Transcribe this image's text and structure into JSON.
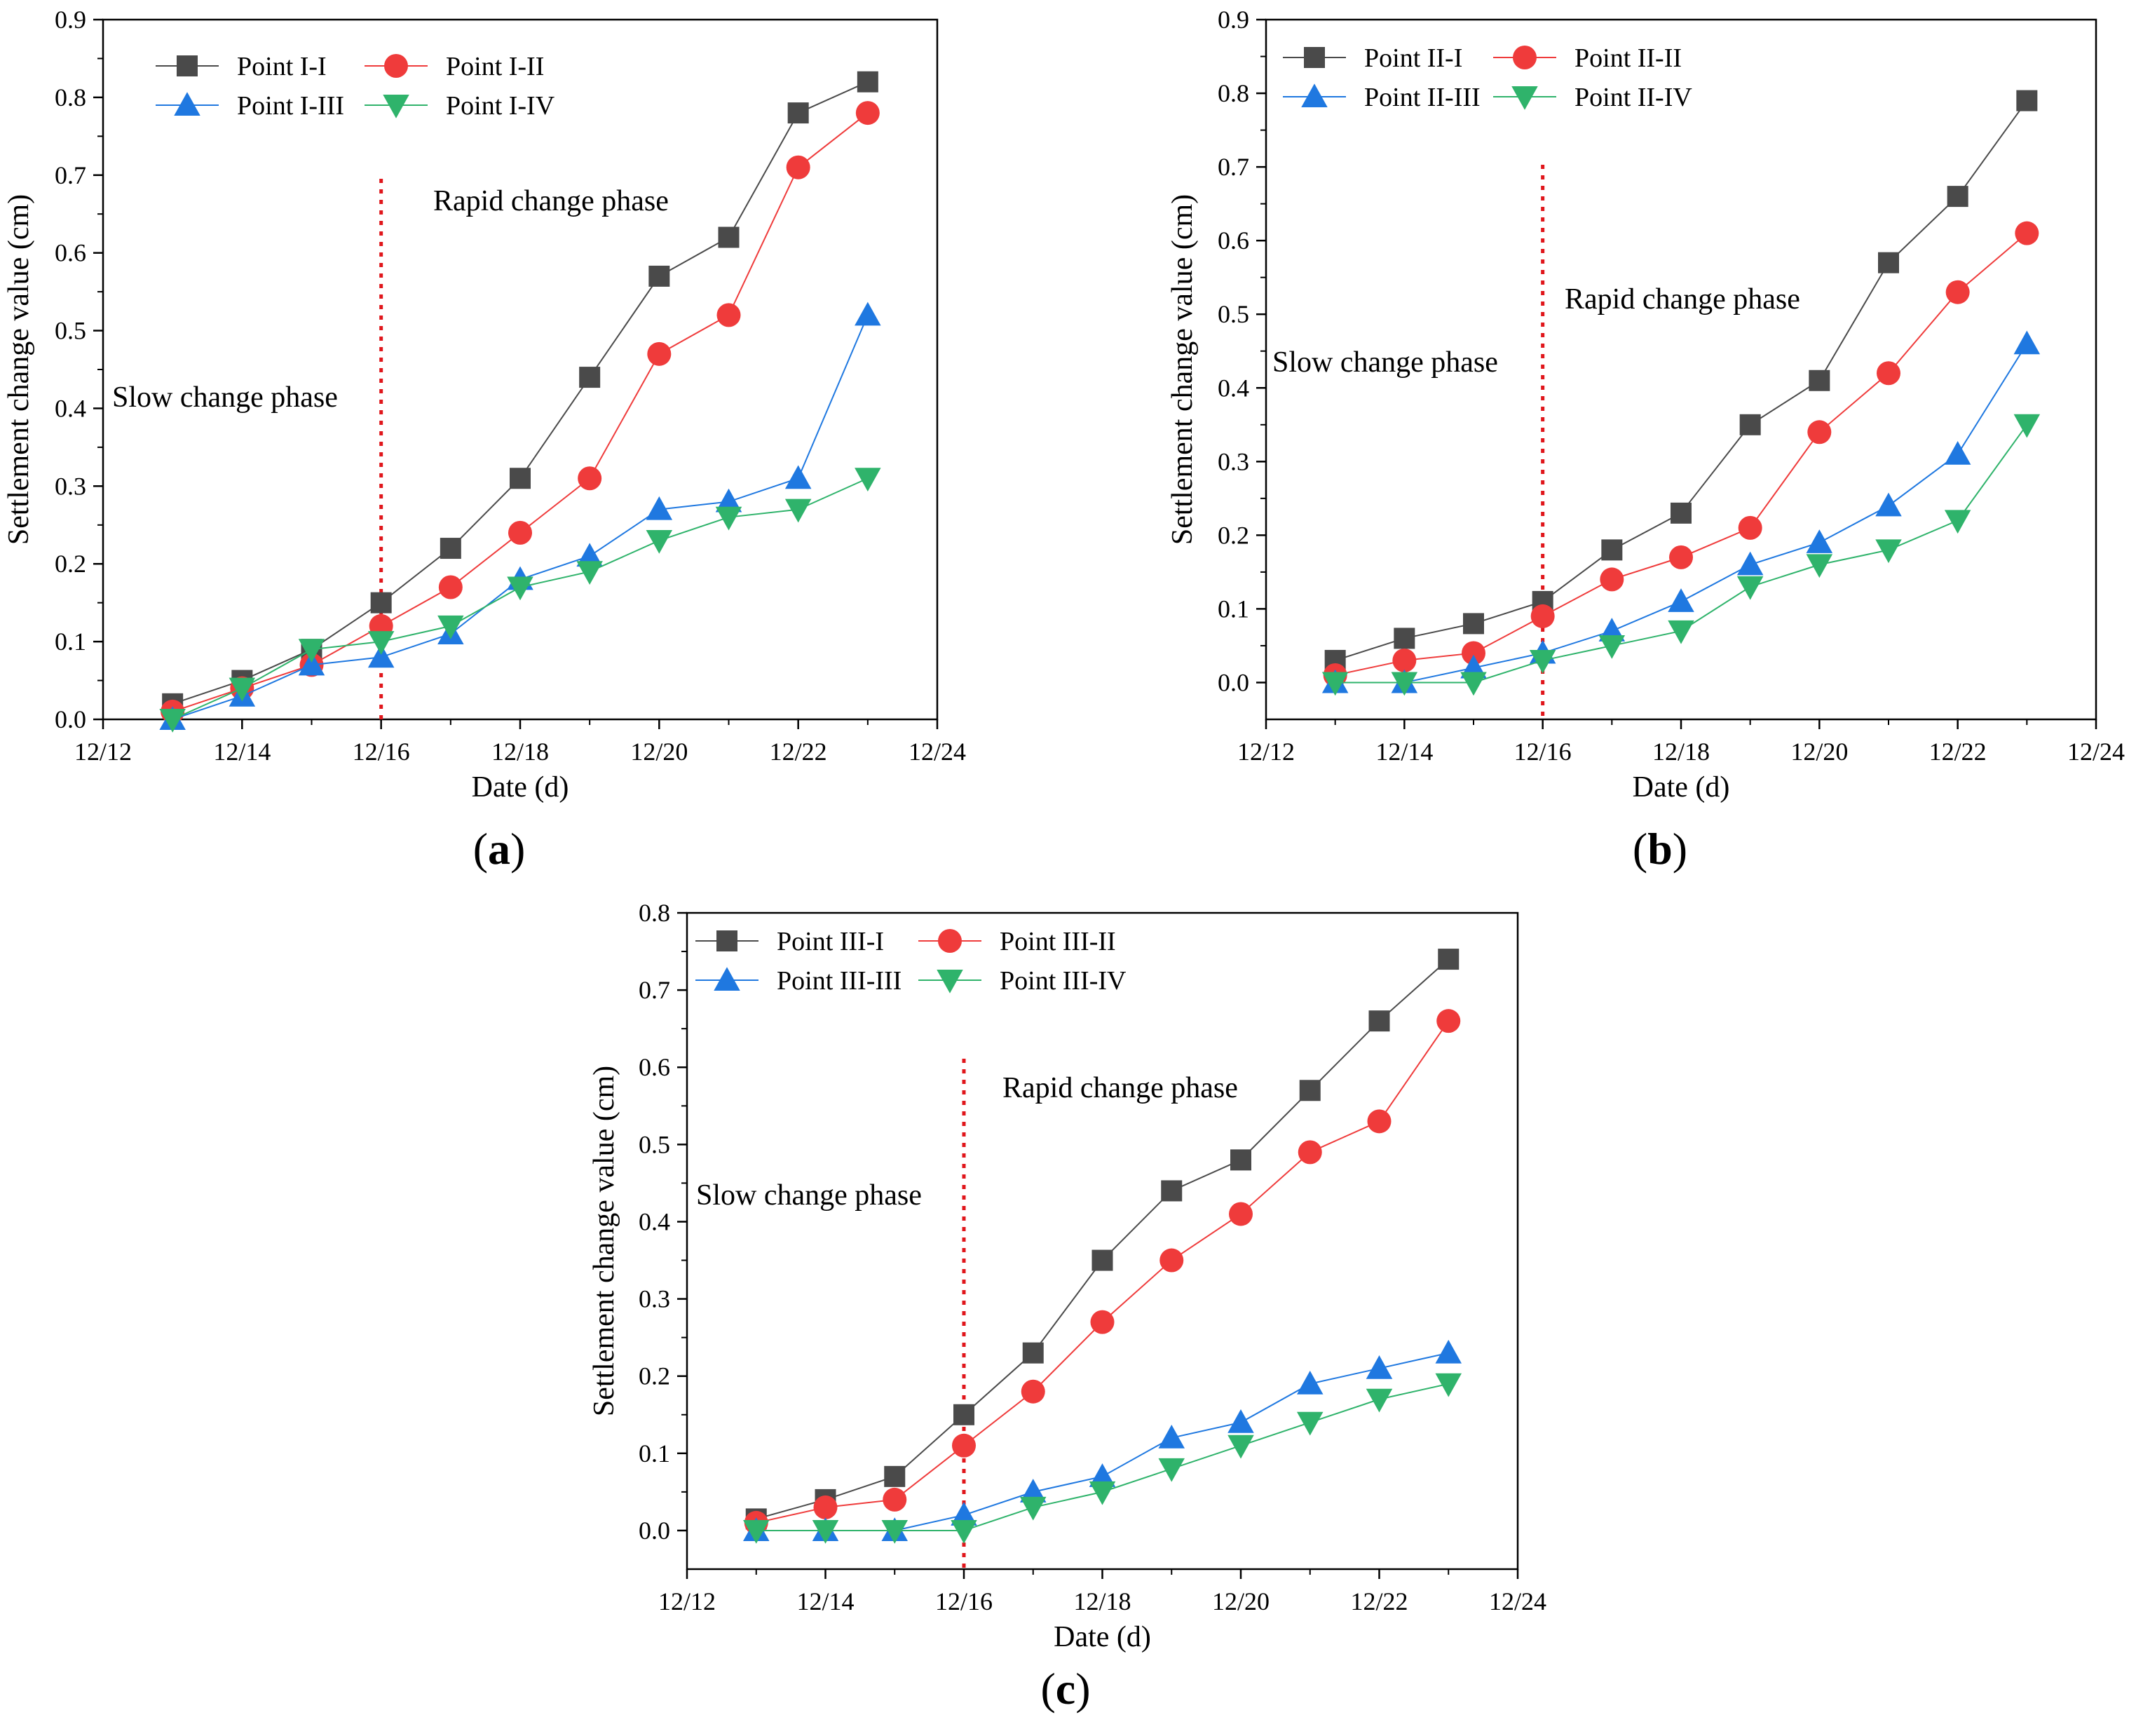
{
  "chart_data": [
    {
      "type": "line",
      "panel_label": "a",
      "xlabel": "Date (d)",
      "ylabel": "Settlement change value (cm)",
      "x_ticks": [
        "12/12",
        "12/14",
        "12/16",
        "12/18",
        "12/20",
        "12/22",
        "12/24"
      ],
      "y_ticks": [
        "0.0",
        "0.1",
        "0.2",
        "0.3",
        "0.4",
        "0.5",
        "0.6",
        "0.7",
        "0.8",
        "0.9"
      ],
      "xlim": [
        12,
        24
      ],
      "ylim": [
        0,
        0.9
      ],
      "x": [
        13,
        14,
        15,
        16,
        17,
        18,
        19,
        20,
        21,
        22,
        23
      ],
      "divider_x": 16,
      "slow_label": "Slow change phase",
      "rapid_label": "Rapid change phase",
      "series": [
        {
          "name": "Point I-I",
          "marker": "square",
          "color": "#4a4a4a",
          "values": [
            0.02,
            0.05,
            0.09,
            0.15,
            0.22,
            0.31,
            0.44,
            0.57,
            0.62,
            0.78,
            0.82
          ]
        },
        {
          "name": "Point I-II",
          "marker": "circle",
          "color": "#ef3b3b",
          "values": [
            0.01,
            0.04,
            0.07,
            0.12,
            0.17,
            0.24,
            0.31,
            0.47,
            0.52,
            0.71,
            0.78
          ]
        },
        {
          "name": "Point I-III",
          "marker": "triangle-up",
          "color": "#1f78e0",
          "values": [
            0.0,
            0.03,
            0.07,
            0.08,
            0.11,
            0.18,
            0.21,
            0.27,
            0.28,
            0.31,
            0.52
          ]
        },
        {
          "name": "Point I-IV",
          "marker": "triangle-down",
          "color": "#2fb36b",
          "values": [
            0.0,
            0.04,
            0.09,
            0.1,
            0.12,
            0.17,
            0.19,
            0.23,
            0.26,
            0.27,
            0.31
          ]
        }
      ]
    },
    {
      "type": "line",
      "panel_label": "b",
      "xlabel": "Date (d)",
      "ylabel": "Settlement change value (cm)",
      "x_ticks": [
        "12/12",
        "12/14",
        "12/16",
        "12/18",
        "12/20",
        "12/22",
        "12/24"
      ],
      "y_ticks": [
        "0.0",
        "0.1",
        "0.2",
        "0.3",
        "0.4",
        "0.5",
        "0.6",
        "0.7",
        "0.8",
        "0.9"
      ],
      "xlim": [
        12,
        24
      ],
      "ylim": [
        -0.05,
        0.9
      ],
      "x": [
        13,
        14,
        15,
        16,
        17,
        18,
        19,
        20,
        21,
        22,
        23
      ],
      "divider_x": 16,
      "slow_label": "Slow change phase",
      "rapid_label": "Rapid change phase",
      "series": [
        {
          "name": "Point II-I",
          "marker": "square",
          "color": "#4a4a4a",
          "values": [
            0.03,
            0.06,
            0.08,
            0.11,
            0.18,
            0.23,
            0.35,
            0.41,
            0.57,
            0.66,
            0.79
          ]
        },
        {
          "name": "Point II-II",
          "marker": "circle",
          "color": "#ef3b3b",
          "values": [
            0.01,
            0.03,
            0.04,
            0.09,
            0.14,
            0.17,
            0.21,
            0.34,
            0.42,
            0.53,
            0.61
          ]
        },
        {
          "name": "Point II-III",
          "marker": "triangle-up",
          "color": "#1f78e0",
          "values": [
            0.0,
            0.0,
            0.02,
            0.04,
            0.07,
            0.11,
            0.16,
            0.19,
            0.24,
            0.31,
            0.46
          ]
        },
        {
          "name": "Point II-IV",
          "marker": "triangle-down",
          "color": "#2fb36b",
          "values": [
            0.0,
            0.0,
            0.0,
            0.03,
            0.05,
            0.07,
            0.13,
            0.16,
            0.18,
            0.22,
            0.35
          ]
        }
      ]
    },
    {
      "type": "line",
      "panel_label": "c",
      "xlabel": "Date (d)",
      "ylabel": "Settlement change value (cm)",
      "x_ticks": [
        "12/12",
        "12/14",
        "12/16",
        "12/18",
        "12/20",
        "12/22",
        "12/24"
      ],
      "y_ticks": [
        "0.0",
        "0.1",
        "0.2",
        "0.3",
        "0.4",
        "0.5",
        "0.6",
        "0.7",
        "0.8"
      ],
      "xlim": [
        12,
        24
      ],
      "ylim": [
        -0.05,
        0.8
      ],
      "x": [
        13,
        14,
        15,
        16,
        17,
        18,
        19,
        20,
        21,
        22,
        23
      ],
      "divider_x": 16,
      "slow_label": "Slow change phase",
      "rapid_label": "Rapid change phase",
      "series": [
        {
          "name": "Point III-I",
          "marker": "square",
          "color": "#4a4a4a",
          "values": [
            0.015,
            0.04,
            0.07,
            0.15,
            0.23,
            0.35,
            0.44,
            0.48,
            0.57,
            0.66,
            0.74
          ]
        },
        {
          "name": "Point III-II",
          "marker": "circle",
          "color": "#ef3b3b",
          "values": [
            0.01,
            0.03,
            0.04,
            0.11,
            0.18,
            0.27,
            0.35,
            0.41,
            0.49,
            0.53,
            0.66
          ]
        },
        {
          "name": "Point III-III",
          "marker": "triangle-up",
          "color": "#1f78e0",
          "values": [
            0.0,
            0.0,
            0.0,
            0.02,
            0.05,
            0.07,
            0.12,
            0.14,
            0.19,
            0.21,
            0.23
          ]
        },
        {
          "name": "Point III-IV",
          "marker": "triangle-down",
          "color": "#2fb36b",
          "values": [
            0.0,
            0.0,
            0.0,
            0.0,
            0.03,
            0.05,
            0.08,
            0.11,
            0.14,
            0.17,
            0.19
          ]
        }
      ]
    }
  ]
}
